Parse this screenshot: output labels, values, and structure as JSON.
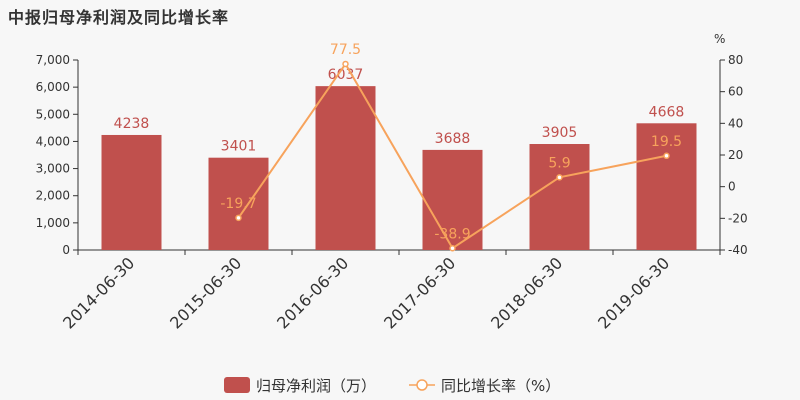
{
  "chart_data": {
    "type": "bar",
    "title": "中报归母净利润及同比增长率",
    "categories": [
      "2014-06-30",
      "2015-06-30",
      "2016-06-30",
      "2017-06-30",
      "2018-06-30",
      "2019-06-30"
    ],
    "series": [
      {
        "name": "归母净利润（万）",
        "type": "bar",
        "axis": "left",
        "values": [
          4238,
          3401,
          6037,
          3688,
          3905,
          4668
        ],
        "color": "#c0504d"
      },
      {
        "name": "同比增长率（%）",
        "type": "line",
        "axis": "right",
        "values": [
          null,
          -19.7,
          77.5,
          -38.9,
          5.9,
          19.5
        ],
        "color": "#f7a35c"
      }
    ],
    "left_axis": {
      "ylim": [
        0,
        7000
      ],
      "ticks": [
        0,
        1000,
        2000,
        3000,
        4000,
        5000,
        6000,
        7000
      ],
      "tick_labels": [
        "0",
        "1,000",
        "2,000",
        "3,000",
        "4,000",
        "5,000",
        "6,000",
        "7,000"
      ]
    },
    "right_axis": {
      "label": "%",
      "ylim": [
        -40,
        80
      ],
      "ticks": [
        -40,
        -20,
        0,
        20,
        40,
        60,
        80
      ],
      "tick_labels": [
        "-40",
        "-20",
        "0",
        "20",
        "40",
        "60",
        "80"
      ]
    },
    "bar_labels": [
      "4238",
      "3401",
      "6037",
      "3688",
      "3905",
      "4668"
    ],
    "line_labels": [
      "-19.7",
      "77.5",
      "-38.9",
      "5.9",
      "19.5"
    ],
    "grid": false,
    "legend": "bottom-center"
  }
}
